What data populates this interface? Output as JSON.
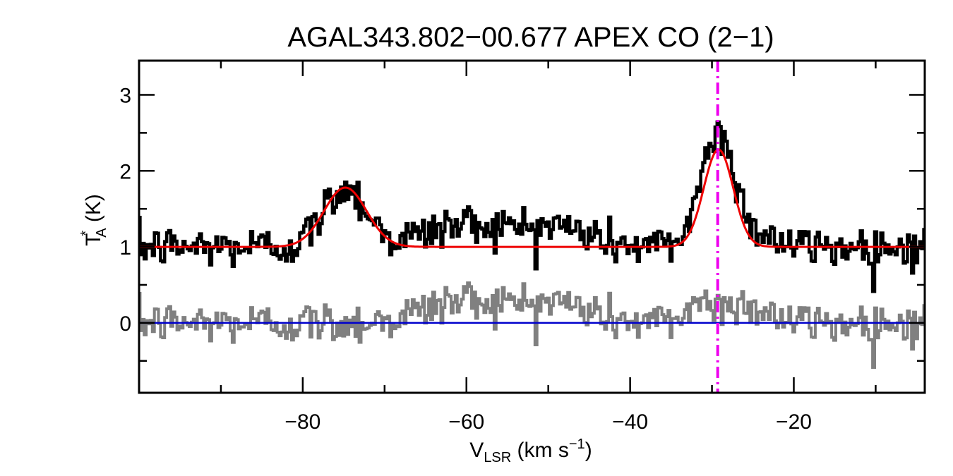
{
  "chart_data": {
    "type": "line",
    "title": "AGAL343.802−00.677  APEX CO (2−1)",
    "xlabel": {
      "main": "V",
      "sub": "LSR",
      "rest": " (km s",
      "sup": "−1",
      "close": ")"
    },
    "ylabel": {
      "main": "T",
      "sup": "*",
      "sub": "A",
      "rest": " (K)"
    },
    "xlim": [
      -100,
      -4
    ],
    "ylim": [
      -0.92,
      3.45
    ],
    "xticks": [
      -80,
      -60,
      -40,
      -20
    ],
    "xtick_labels": [
      "−80",
      "−60",
      "−40",
      "−20"
    ],
    "yticks": [
      0,
      1,
      2,
      3
    ],
    "ytick_labels": [
      "0",
      "1",
      "2",
      "3"
    ],
    "grid": false,
    "colors": {
      "spectrum": "#000000",
      "fit": "#ee0000",
      "residual": "#808080",
      "baseline": "#0000cc",
      "marker": "#ee00ee"
    },
    "vline_x": -29.3,
    "baseline_y": 0,
    "offset": 1.0,
    "components": [
      {
        "amp": 0.78,
        "center": -74.8,
        "sigma": 2.6
      },
      {
        "amp": 1.28,
        "center": -29.2,
        "sigma": 1.8
      }
    ],
    "wing_excess": [
      {
        "center": -60,
        "sigma": 5,
        "amp": 0.3
      },
      {
        "center": -49,
        "sigma": 4,
        "amp": 0.25
      },
      {
        "center": -31.5,
        "sigma": 1.5,
        "amp": 0.3
      },
      {
        "center": -27.5,
        "sigma": 1.2,
        "amp": 0.28
      },
      {
        "center": -24,
        "sigma": 1.5,
        "amp": 0.2
      }
    ],
    "noise_rms": 0.14,
    "channel_width": 0.25,
    "series": [
      {
        "name": "",
        "style": "histogram",
        "color": "#000000"
      },
      {
        "name": "",
        "style": "curve",
        "color": "#ee0000"
      },
      {
        "name": "",
        "style": "histogram",
        "color": "#808080"
      }
    ]
  }
}
